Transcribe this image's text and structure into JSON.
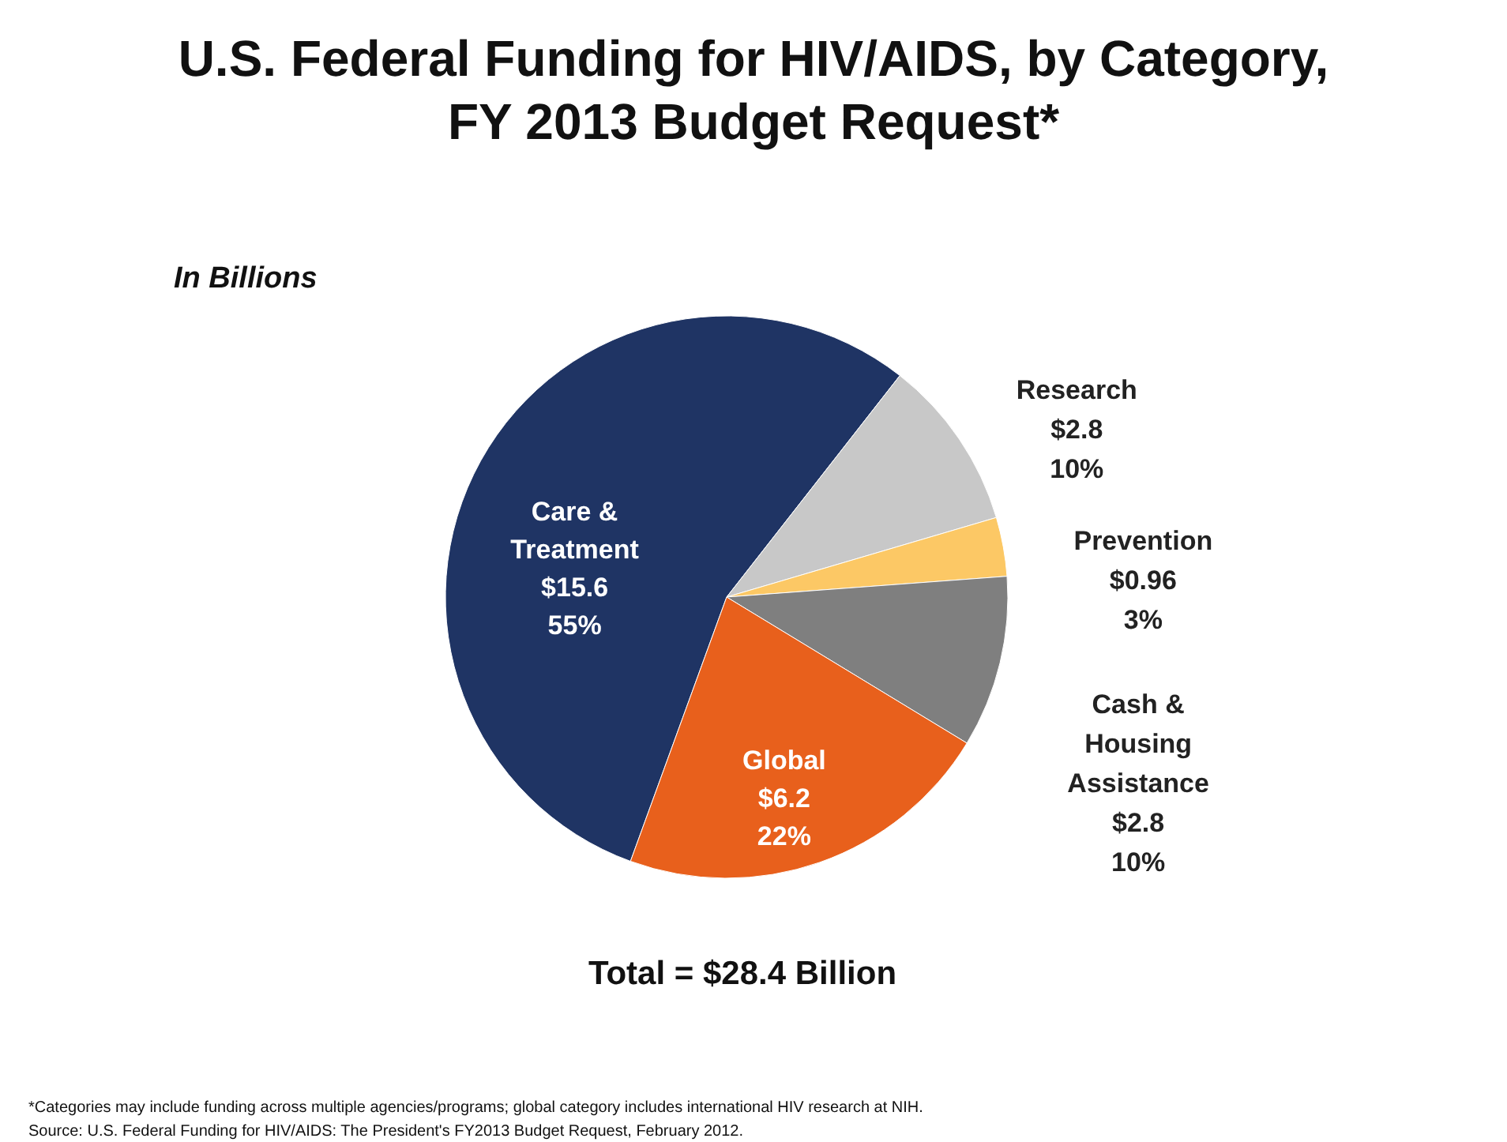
{
  "chart_data": {
    "type": "pie",
    "title": "U.S. Federal Funding for HIV/AIDS, by Category, FY 2013 Budget Request*",
    "subtitle": "In Billions",
    "categories": [
      "Care & Treatment",
      "Research",
      "Prevention",
      "Cash & Housing Assistance",
      "Global"
    ],
    "values": [
      15.6,
      2.8,
      0.96,
      2.8,
      6.2
    ],
    "colors": [
      "#1f3464",
      "#c8c8c8",
      "#fcc865",
      "#7f7f7f",
      "#e8601c"
    ],
    "value_labels": [
      "$15.6\n55%",
      "$2.8\n10%",
      "$0.96\n3%",
      "$2.8\n10%",
      "$6.2\n22%"
    ],
    "annotations": [
      "Total = $28.4 Billion",
      "*Categories may include funding across multiple agencies/programs; global category includes international HIV research at NIH.",
      "Source: U.S. Federal Funding for HIV/AIDS: The President's FY2013 Budget Request, February 2012."
    ]
  }
}
